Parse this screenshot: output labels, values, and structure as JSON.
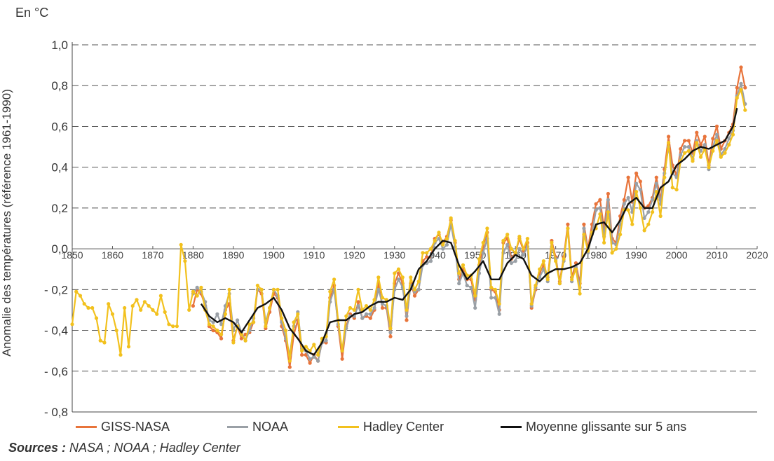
{
  "unit_label": "En °C",
  "sources": {
    "prefix": "Sources :",
    "text": " NASA ; NOAA ; Hadley Center"
  },
  "chart_data": {
    "type": "line",
    "title": "",
    "xlabel": "",
    "ylabel": "Anomalie des températures (référence 1961-1990)",
    "xlim": [
      1850,
      2020
    ],
    "ylim": [
      -0.8,
      1.0
    ],
    "x_ticks": [
      "1850",
      "1860",
      "1870",
      "1880",
      "1890",
      "1900",
      "1910",
      "1920",
      "1930",
      "1940",
      "1950",
      "1960",
      "1970",
      "1980",
      "1990",
      "2000",
      "2010",
      "2020"
    ],
    "y_ticks": [
      "- 0,8",
      "- 0,6",
      "- 0,4",
      "- 0,2",
      "0,0",
      "0,2",
      "0,4",
      "0,6",
      "0,8",
      "1,0"
    ],
    "grid": "horizontal dashed",
    "legend_position": "bottom",
    "colors": {
      "GISS-NASA": "#e8743b",
      "NOAA": "#9aa0a6",
      "Hadley Center": "#f2c11e",
      "Moyenne glissante sur 5 ans": "#111111"
    },
    "series": [
      {
        "name": "GISS-NASA",
        "x": [
          1880,
          1881,
          1882,
          1883,
          1884,
          1885,
          1886,
          1887,
          1888,
          1889,
          1890,
          1891,
          1892,
          1893,
          1894,
          1895,
          1896,
          1897,
          1898,
          1899,
          1900,
          1901,
          1902,
          1903,
          1904,
          1905,
          1906,
          1907,
          1908,
          1909,
          1910,
          1911,
          1912,
          1913,
          1914,
          1915,
          1916,
          1917,
          1918,
          1919,
          1920,
          1921,
          1922,
          1923,
          1924,
          1925,
          1926,
          1927,
          1928,
          1929,
          1930,
          1931,
          1932,
          1933,
          1934,
          1935,
          1936,
          1937,
          1938,
          1939,
          1940,
          1941,
          1942,
          1943,
          1944,
          1945,
          1946,
          1947,
          1948,
          1949,
          1950,
          1951,
          1952,
          1953,
          1954,
          1955,
          1956,
          1957,
          1958,
          1959,
          1960,
          1961,
          1962,
          1963,
          1964,
          1965,
          1966,
          1967,
          1968,
          1969,
          1970,
          1971,
          1972,
          1973,
          1974,
          1975,
          1976,
          1977,
          1978,
          1979,
          1980,
          1981,
          1982,
          1983,
          1984,
          1985,
          1986,
          1987,
          1988,
          1989,
          1990,
          1991,
          1992,
          1993,
          1994,
          1995,
          1996,
          1997,
          1998,
          1999,
          2000,
          2001,
          2002,
          2003,
          2004,
          2005,
          2006,
          2007,
          2008,
          2009,
          2010,
          2011,
          2012,
          2013,
          2014,
          2015,
          2016,
          2017
        ],
        "values": [
          -0.28,
          -0.2,
          -0.22,
          -0.28,
          -0.38,
          -0.4,
          -0.41,
          -0.44,
          -0.3,
          -0.27,
          -0.45,
          -0.38,
          -0.44,
          -0.42,
          -0.41,
          -0.36,
          -0.2,
          -0.22,
          -0.39,
          -0.31,
          -0.22,
          -0.24,
          -0.38,
          -0.45,
          -0.58,
          -0.42,
          -0.35,
          -0.52,
          -0.52,
          -0.56,
          -0.52,
          -0.55,
          -0.46,
          -0.46,
          -0.24,
          -0.18,
          -0.38,
          -0.54,
          -0.38,
          -0.32,
          -0.34,
          -0.26,
          -0.34,
          -0.33,
          -0.34,
          -0.3,
          -0.17,
          -0.29,
          -0.29,
          -0.43,
          -0.17,
          -0.12,
          -0.17,
          -0.35,
          -0.17,
          -0.23,
          -0.2,
          -0.06,
          -0.04,
          -0.04,
          0.05,
          0.07,
          0.03,
          0.06,
          0.14,
          0.03,
          -0.15,
          -0.1,
          -0.15,
          -0.15,
          -0.25,
          -0.08,
          0.01,
          0.08,
          -0.2,
          -0.21,
          -0.3,
          0.03,
          0.05,
          -0.05,
          -0.02,
          0.05,
          -0.01,
          0.03,
          -0.29,
          -0.2,
          -0.12,
          -0.08,
          -0.14,
          0.04,
          -0.04,
          -0.16,
          -0.04,
          0.12,
          -0.14,
          -0.07,
          -0.17,
          0.12,
          0.0,
          0.12,
          0.22,
          0.24,
          0.1,
          0.27,
          0.05,
          0.03,
          0.16,
          0.24,
          0.35,
          0.23,
          0.37,
          0.33,
          0.2,
          0.21,
          0.25,
          0.35,
          0.24,
          0.39,
          0.55,
          0.41,
          0.36,
          0.49,
          0.53,
          0.53,
          0.47,
          0.57,
          0.51,
          0.55,
          0.41,
          0.54,
          0.6,
          0.49,
          0.53,
          0.57,
          0.61,
          0.79,
          0.89,
          0.79
        ]
      },
      {
        "name": "NOAA",
        "x": [
          1880,
          1881,
          1882,
          1883,
          1884,
          1885,
          1886,
          1887,
          1888,
          1889,
          1890,
          1891,
          1892,
          1893,
          1894,
          1895,
          1896,
          1897,
          1898,
          1899,
          1900,
          1901,
          1902,
          1903,
          1904,
          1905,
          1906,
          1907,
          1908,
          1909,
          1910,
          1911,
          1912,
          1913,
          1914,
          1915,
          1916,
          1917,
          1918,
          1919,
          1920,
          1921,
          1922,
          1923,
          1924,
          1925,
          1926,
          1927,
          1928,
          1929,
          1930,
          1931,
          1932,
          1933,
          1934,
          1935,
          1936,
          1937,
          1938,
          1939,
          1940,
          1941,
          1942,
          1943,
          1944,
          1945,
          1946,
          1947,
          1948,
          1949,
          1950,
          1951,
          1952,
          1953,
          1954,
          1955,
          1956,
          1957,
          1958,
          1959,
          1960,
          1961,
          1962,
          1963,
          1964,
          1965,
          1966,
          1967,
          1968,
          1969,
          1970,
          1971,
          1972,
          1973,
          1974,
          1975,
          1976,
          1977,
          1978,
          1979,
          1980,
          1981,
          1982,
          1983,
          1984,
          1985,
          1986,
          1987,
          1988,
          1989,
          1990,
          1991,
          1992,
          1993,
          1994,
          1995,
          1996,
          1997,
          1998,
          1999,
          2000,
          2001,
          2002,
          2003,
          2004,
          2005,
          2006,
          2007,
          2008,
          2009,
          2010,
          2011,
          2012,
          2013,
          2014,
          2015,
          2016,
          2017
        ],
        "values": [
          -0.22,
          -0.19,
          -0.21,
          -0.26,
          -0.35,
          -0.36,
          -0.32,
          -0.37,
          -0.28,
          -0.22,
          -0.4,
          -0.35,
          -0.41,
          -0.45,
          -0.4,
          -0.34,
          -0.2,
          -0.2,
          -0.36,
          -0.29,
          -0.2,
          -0.23,
          -0.36,
          -0.44,
          -0.52,
          -0.38,
          -0.31,
          -0.49,
          -0.5,
          -0.54,
          -0.53,
          -0.55,
          -0.46,
          -0.45,
          -0.26,
          -0.2,
          -0.37,
          -0.5,
          -0.39,
          -0.33,
          -0.33,
          -0.28,
          -0.34,
          -0.32,
          -0.32,
          -0.29,
          -0.2,
          -0.27,
          -0.28,
          -0.41,
          -0.2,
          -0.15,
          -0.19,
          -0.33,
          -0.18,
          -0.21,
          -0.2,
          -0.08,
          -0.07,
          -0.06,
          0.03,
          0.05,
          0.0,
          0.02,
          0.12,
          0.01,
          -0.17,
          -0.12,
          -0.18,
          -0.19,
          -0.29,
          -0.12,
          -0.02,
          0.05,
          -0.24,
          -0.24,
          -0.32,
          -0.02,
          0.02,
          -0.07,
          -0.06,
          0.0,
          -0.03,
          0.01,
          -0.28,
          -0.19,
          -0.14,
          -0.1,
          -0.16,
          0.01,
          -0.05,
          -0.17,
          -0.06,
          0.1,
          -0.16,
          -0.09,
          -0.19,
          0.1,
          -0.02,
          0.07,
          0.19,
          0.2,
          0.06,
          0.24,
          0.03,
          0.02,
          0.12,
          0.22,
          0.25,
          0.18,
          0.32,
          0.29,
          0.15,
          0.18,
          0.24,
          0.32,
          0.22,
          0.37,
          0.5,
          0.37,
          0.35,
          0.46,
          0.5,
          0.5,
          0.44,
          0.53,
          0.48,
          0.51,
          0.39,
          0.5,
          0.56,
          0.46,
          0.49,
          0.54,
          0.58,
          0.75,
          0.81,
          0.71
        ]
      },
      {
        "name": "Hadley Center",
        "x": [
          1850,
          1851,
          1852,
          1853,
          1854,
          1855,
          1856,
          1857,
          1858,
          1859,
          1860,
          1861,
          1862,
          1863,
          1864,
          1865,
          1866,
          1867,
          1868,
          1869,
          1870,
          1871,
          1872,
          1873,
          1874,
          1875,
          1876,
          1877,
          1878,
          1879,
          1880,
          1881,
          1882,
          1883,
          1884,
          1885,
          1886,
          1887,
          1888,
          1889,
          1890,
          1891,
          1892,
          1893,
          1894,
          1895,
          1896,
          1897,
          1898,
          1899,
          1900,
          1901,
          1902,
          1903,
          1904,
          1905,
          1906,
          1907,
          1908,
          1909,
          1910,
          1911,
          1912,
          1913,
          1914,
          1915,
          1916,
          1917,
          1918,
          1919,
          1920,
          1921,
          1922,
          1923,
          1924,
          1925,
          1926,
          1927,
          1928,
          1929,
          1930,
          1931,
          1932,
          1933,
          1934,
          1935,
          1936,
          1937,
          1938,
          1939,
          1940,
          1941,
          1942,
          1943,
          1944,
          1945,
          1946,
          1947,
          1948,
          1949,
          1950,
          1951,
          1952,
          1953,
          1954,
          1955,
          1956,
          1957,
          1958,
          1959,
          1960,
          1961,
          1962,
          1963,
          1964,
          1965,
          1966,
          1967,
          1968,
          1969,
          1970,
          1971,
          1972,
          1973,
          1974,
          1975,
          1976,
          1977,
          1978,
          1979,
          1980,
          1981,
          1982,
          1983,
          1984,
          1985,
          1986,
          1987,
          1988,
          1989,
          1990,
          1991,
          1992,
          1993,
          1994,
          1995,
          1996,
          1997,
          1998,
          1999,
          2000,
          2001,
          2002,
          2003,
          2004,
          2005,
          2006,
          2007,
          2008,
          2009,
          2010,
          2011,
          2012,
          2013,
          2014,
          2015,
          2016,
          2017
        ],
        "values": [
          -0.37,
          -0.21,
          -0.23,
          -0.27,
          -0.29,
          -0.29,
          -0.34,
          -0.45,
          -0.46,
          -0.27,
          -0.32,
          -0.4,
          -0.52,
          -0.29,
          -0.48,
          -0.28,
          -0.25,
          -0.3,
          -0.26,
          -0.28,
          -0.3,
          -0.32,
          -0.23,
          -0.31,
          -0.37,
          -0.38,
          -0.38,
          0.02,
          -0.06,
          -0.3,
          -0.21,
          -0.23,
          -0.19,
          -0.3,
          -0.37,
          -0.38,
          -0.4,
          -0.42,
          -0.32,
          -0.2,
          -0.46,
          -0.38,
          -0.42,
          -0.45,
          -0.37,
          -0.36,
          -0.18,
          -0.2,
          -0.38,
          -0.29,
          -0.2,
          -0.2,
          -0.34,
          -0.4,
          -0.55,
          -0.36,
          -0.32,
          -0.5,
          -0.48,
          -0.5,
          -0.47,
          -0.52,
          -0.44,
          -0.43,
          -0.21,
          -0.15,
          -0.35,
          -0.5,
          -0.33,
          -0.29,
          -0.3,
          -0.2,
          -0.3,
          -0.28,
          -0.3,
          -0.25,
          -0.14,
          -0.24,
          -0.25,
          -0.39,
          -0.12,
          -0.1,
          -0.14,
          -0.3,
          -0.14,
          -0.2,
          -0.16,
          -0.02,
          -0.02,
          0.0,
          0.04,
          0.08,
          0.02,
          0.05,
          0.15,
          0.04,
          -0.12,
          -0.08,
          -0.13,
          -0.13,
          -0.23,
          -0.05,
          0.03,
          0.1,
          -0.19,
          -0.2,
          -0.27,
          0.04,
          0.07,
          0.0,
          -0.02,
          0.06,
          0.0,
          0.05,
          -0.27,
          -0.18,
          -0.1,
          -0.06,
          -0.15,
          0.03,
          -0.06,
          -0.17,
          -0.05,
          0.1,
          -0.15,
          -0.1,
          -0.22,
          0.07,
          -0.01,
          0.08,
          0.1,
          0.17,
          0.03,
          0.18,
          -0.02,
          0.0,
          0.07,
          0.19,
          0.19,
          0.12,
          0.28,
          0.2,
          0.09,
          0.12,
          0.18,
          0.28,
          0.16,
          0.35,
          0.52,
          0.3,
          0.29,
          0.43,
          0.47,
          0.48,
          0.43,
          0.52,
          0.45,
          0.49,
          0.4,
          0.48,
          0.53,
          0.45,
          0.47,
          0.51,
          0.56,
          0.74,
          0.78,
          0.68
        ]
      },
      {
        "name": "Moyenne glissante sur 5 ans",
        "x": [
          1882,
          1884,
          1886,
          1888,
          1890,
          1892,
          1894,
          1896,
          1898,
          1900,
          1902,
          1904,
          1906,
          1908,
          1910,
          1912,
          1914,
          1916,
          1918,
          1920,
          1922,
          1924,
          1926,
          1928,
          1930,
          1932,
          1934,
          1936,
          1938,
          1940,
          1942,
          1944,
          1946,
          1948,
          1950,
          1952,
          1954,
          1956,
          1958,
          1960,
          1962,
          1964,
          1966,
          1968,
          1970,
          1972,
          1974,
          1976,
          1978,
          1980,
          1982,
          1984,
          1986,
          1988,
          1990,
          1992,
          1994,
          1996,
          1998,
          2000,
          2002,
          2004,
          2006,
          2008,
          2010,
          2012,
          2014,
          2015
        ],
        "values": [
          -0.27,
          -0.33,
          -0.36,
          -0.34,
          -0.36,
          -0.41,
          -0.35,
          -0.29,
          -0.27,
          -0.24,
          -0.3,
          -0.39,
          -0.44,
          -0.5,
          -0.52,
          -0.46,
          -0.36,
          -0.35,
          -0.35,
          -0.32,
          -0.31,
          -0.28,
          -0.26,
          -0.26,
          -0.24,
          -0.25,
          -0.2,
          -0.1,
          -0.06,
          0.0,
          0.04,
          0.03,
          -0.08,
          -0.15,
          -0.11,
          -0.06,
          -0.15,
          -0.15,
          -0.07,
          -0.03,
          -0.05,
          -0.13,
          -0.16,
          -0.12,
          -0.1,
          -0.1,
          -0.09,
          -0.07,
          0.0,
          0.12,
          0.13,
          0.08,
          0.14,
          0.22,
          0.25,
          0.2,
          0.2,
          0.3,
          0.33,
          0.41,
          0.44,
          0.48,
          0.5,
          0.49,
          0.51,
          0.53,
          0.6,
          0.69
        ]
      }
    ]
  }
}
